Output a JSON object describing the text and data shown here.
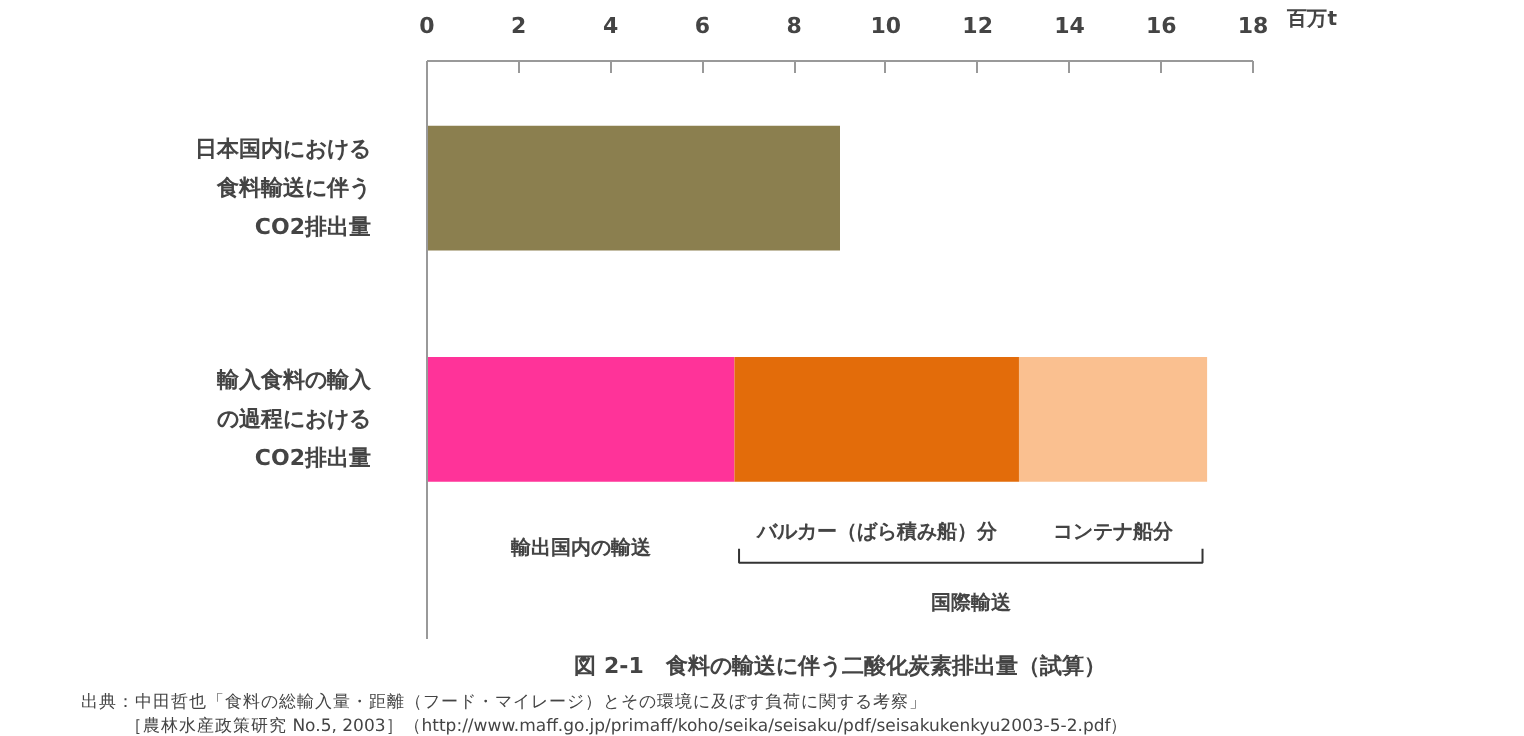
{
  "chart_data": {
    "type": "bar",
    "orientation": "horizontal",
    "stacked": true,
    "title": "図 2-1　食料の輸送に伴う二酸化炭素排出量（試算）",
    "xlabel": "百万t",
    "categories": [
      "日本国内における食料輸送に伴うCO2排出量",
      "輸入食料の輸入の過程におけるCO2排出量"
    ],
    "series": [
      {
        "color": "#8b7f4f",
        "values": [
          9.0,
          null
        ]
      },
      {
        "name": "輸出国内の輸送",
        "color": "#ff3399",
        "values": [
          null,
          6.7
        ]
      },
      {
        "name": "バルカー（ばら積み船）分",
        "color": "#e36c0a",
        "values": [
          null,
          6.2
        ]
      },
      {
        "name": "コンテナ船分",
        "color": "#fac090",
        "values": [
          null,
          4.1
        ]
      }
    ],
    "xlim": [
      0,
      18
    ],
    "xticks": [
      0,
      2,
      4,
      6,
      8,
      10,
      12,
      14,
      16,
      18
    ],
    "grid": false,
    "annotations": [
      "国際輸送",
      "出典：中田哲也「食料の総輸入量・距離（フード・マイレージ）とその環境に及ぼす負荷に関する考察」",
      "［農林水産政策研究 No.5, 2003］（http://www.maff.go.jp/primaff/koho/seika/seisaku/pdf/seisakukenkyu2003-5-2.pdf）"
    ]
  }
}
